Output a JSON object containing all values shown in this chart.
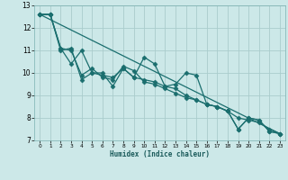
{
  "title": "",
  "xlabel": "Humidex (Indice chaleur)",
  "ylabel": "",
  "bg_color": "#cce8e8",
  "grid_color": "#aacccc",
  "line_color": "#1a6e6e",
  "xlim": [
    -0.5,
    23.5
  ],
  "ylim": [
    7,
    13
  ],
  "yticks": [
    7,
    8,
    9,
    10,
    11,
    12,
    13
  ],
  "xticks": [
    0,
    1,
    2,
    3,
    4,
    5,
    6,
    7,
    8,
    9,
    10,
    11,
    12,
    13,
    14,
    15,
    16,
    17,
    18,
    19,
    20,
    21,
    22,
    23
  ],
  "series": [
    {
      "x": [
        0,
        1,
        2,
        3,
        4,
        5,
        6,
        7,
        8,
        9,
        10,
        11,
        12,
        13,
        14,
        15,
        16,
        17,
        18,
        19,
        20,
        21,
        22,
        23
      ],
      "y": [
        12.6,
        12.6,
        11.0,
        11.1,
        9.7,
        10.0,
        10.0,
        9.4,
        10.2,
        9.8,
        10.7,
        10.4,
        9.4,
        9.5,
        10.0,
        9.9,
        8.6,
        8.5,
        8.3,
        7.5,
        8.0,
        7.9,
        7.4,
        7.3
      ],
      "has_marker": true
    },
    {
      "x": [
        0,
        1,
        2,
        3,
        4,
        5,
        6,
        7,
        8,
        9,
        10,
        11,
        12,
        13,
        14,
        15,
        16,
        17,
        18,
        19,
        20,
        21,
        22,
        23
      ],
      "y": [
        12.6,
        12.6,
        11.1,
        10.4,
        11.0,
        10.0,
        9.9,
        9.8,
        10.2,
        9.8,
        9.7,
        9.6,
        9.4,
        9.3,
        9.0,
        8.8,
        8.6,
        8.5,
        8.3,
        8.0,
        7.9,
        7.8,
        7.5,
        7.3
      ],
      "has_marker": true
    },
    {
      "x": [
        0,
        1,
        2,
        3,
        4,
        5,
        6,
        7,
        8,
        9,
        10,
        11,
        12,
        13,
        14,
        15,
        16,
        17,
        18,
        19,
        20,
        21,
        22,
        23
      ],
      "y": [
        12.6,
        12.6,
        11.1,
        11.0,
        9.9,
        10.2,
        9.8,
        9.7,
        10.3,
        10.1,
        9.6,
        9.5,
        9.3,
        9.1,
        8.9,
        8.8,
        8.6,
        8.5,
        8.3,
        7.5,
        8.0,
        7.9,
        7.4,
        7.3
      ],
      "has_marker": true
    },
    {
      "x": [
        0,
        23
      ],
      "y": [
        12.6,
        7.3
      ],
      "has_marker": false
    }
  ],
  "marker": "D",
  "markersize": 2.5,
  "linewidth": 0.9
}
